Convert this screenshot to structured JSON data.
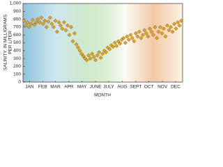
{
  "chart_data": {
    "type": "scatter",
    "ylabel": [
      "SALINITY, IN MILLIGRAMS",
      "PER LITER"
    ],
    "xlabel": "MONTH",
    "x": [
      2,
      6,
      10,
      14,
      18,
      22,
      26,
      30,
      34,
      38,
      42,
      46,
      50,
      54,
      58,
      62,
      66,
      70,
      74,
      78,
      82,
      86,
      90,
      94,
      98,
      102,
      106,
      110,
      114,
      118,
      122,
      126,
      130,
      134,
      138,
      142,
      146,
      150,
      154,
      158,
      162,
      166,
      170,
      174,
      178,
      182,
      186,
      190,
      194,
      198,
      202,
      206,
      210,
      214,
      218,
      222,
      226,
      230,
      234,
      238,
      242,
      246,
      250,
      254,
      258,
      262,
      266,
      270,
      274,
      278,
      282,
      286,
      290,
      294,
      298,
      302,
      306,
      310,
      314,
      318,
      322,
      326,
      330,
      334,
      338,
      342,
      346,
      350,
      354,
      358,
      362
    ],
    "series": [
      {
        "color": "#eda51c",
        "values": [
          780,
          720,
          760,
          700,
          740,
          790,
          730,
          760,
          800,
          760,
          820,
          740,
          780,
          700,
          770,
          820,
          740,
          700,
          780,
          640,
          760,
          720,
          680,
          760,
          660,
          720,
          600,
          700,
          520,
          620,
          480,
          440,
          400,
          360,
          330,
          300,
          280,
          340,
          300,
          360,
          320,
          280,
          340,
          380,
          310,
          360,
          400,
          380,
          440,
          420,
          470,
          450,
          500,
          460,
          520,
          490,
          540,
          560,
          500,
          580,
          540,
          600,
          560,
          520,
          620,
          580,
          640,
          560,
          600,
          660,
          620,
          580,
          680,
          640,
          600,
          700,
          560,
          640,
          700,
          620,
          680,
          580,
          720,
          660,
          700,
          640,
          740,
          680,
          760,
          720,
          780
        ]
      }
    ],
    "xlim": [
      0,
      365
    ],
    "xticks": [
      {
        "value": 15,
        "label": "JAN"
      },
      {
        "value": 45,
        "label": "FEB"
      },
      {
        "value": 74,
        "label": "MAR"
      },
      {
        "value": 105,
        "label": "APR"
      },
      {
        "value": 135,
        "label": "MAY"
      },
      {
        "value": 166,
        "label": "JUNE"
      },
      {
        "value": 196,
        "label": "JULY"
      },
      {
        "value": 227,
        "label": "AUG"
      },
      {
        "value": 258,
        "label": "SEPT"
      },
      {
        "value": 288,
        "label": "OCT"
      },
      {
        "value": 319,
        "label": "NOV"
      },
      {
        "value": 349,
        "label": "DEC"
      }
    ],
    "ylim": [
      0,
      1000
    ],
    "yticks": [
      0,
      100,
      200,
      300,
      400,
      500,
      600,
      700,
      800,
      900,
      {
        "value": 1000,
        "label": "1,000"
      }
    ],
    "grid": false
  }
}
